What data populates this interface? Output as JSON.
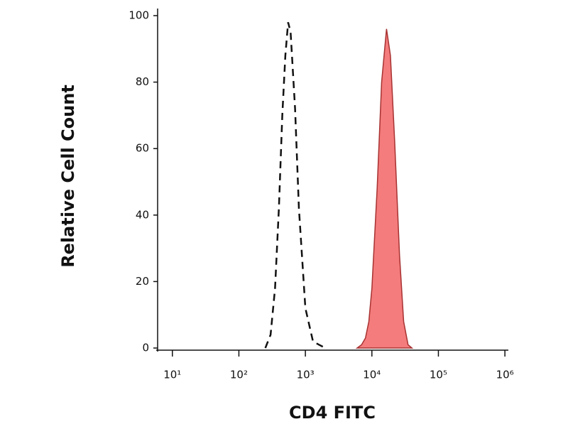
{
  "chart_data": {
    "type": "line",
    "xlabel": "CD4 FITC",
    "ylabel": "Relative Cell Count",
    "xscale": "log",
    "xlim": [
      6,
      1100000
    ],
    "xticks": [
      {
        "value": 10,
        "label": "10¹"
      },
      {
        "value": 100,
        "label": "10²"
      },
      {
        "value": 1000,
        "label": "10³"
      },
      {
        "value": 10000,
        "label": "10⁴"
      },
      {
        "value": 100000,
        "label": "10⁵"
      },
      {
        "value": 1000000,
        "label": "10⁶"
      }
    ],
    "ylim": [
      0,
      100
    ],
    "yticks": [
      0,
      20,
      40,
      60,
      80,
      100
    ],
    "series": [
      {
        "color": "#111111",
        "dashed": true,
        "x": [
          250,
          300,
          350,
          400,
          450,
          500,
          550,
          600,
          700,
          800,
          1000,
          1300,
          1600,
          2000
        ],
        "values": [
          0,
          4,
          18,
          42,
          70,
          88,
          98,
          95,
          72,
          42,
          12,
          2,
          1,
          0
        ]
      },
      {
        "color": "#a83232",
        "fill": "#f47c7c",
        "dashed": false,
        "x": [
          6000,
          7000,
          8000,
          9000,
          10000,
          12000,
          14000,
          16600,
          19000,
          22000,
          26000,
          30000,
          35000,
          40000
        ],
        "values": [
          0,
          1,
          3,
          8,
          18,
          48,
          80,
          96,
          88,
          62,
          28,
          8,
          1,
          0
        ]
      }
    ]
  }
}
